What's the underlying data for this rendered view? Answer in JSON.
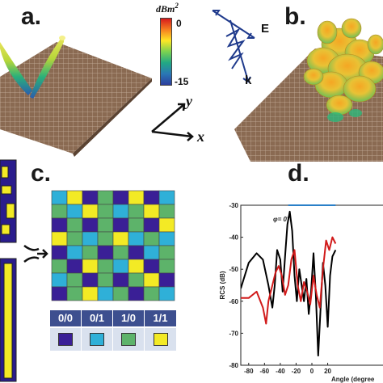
{
  "panels": {
    "a": "a.",
    "b": "b.",
    "c": "c.",
    "d": "d."
  },
  "colorbar": {
    "unit": "dBm",
    "unit_exponent": "2",
    "max_label": "0",
    "min_label": "-15",
    "colors": [
      "#d7191c",
      "#f57f20",
      "#fde725",
      "#7ad151",
      "#22a884",
      "#2a78b5",
      "#2c3e9e"
    ]
  },
  "wave": {
    "e_label": "E",
    "k_label": "k",
    "color": "#1f3a8c"
  },
  "axes3d": {
    "x_label": "x",
    "y_label": "y"
  },
  "coding": {
    "colors": {
      "0/0": "#3a1f96",
      "0/1": "#2fb0d8",
      "1/0": "#5db36a",
      "1/1": "#f3ea25"
    },
    "legend": [
      {
        "code": "0/0",
        "color": "#3a1f96"
      },
      {
        "code": "0/1",
        "color": "#2fb0d8"
      },
      {
        "code": "1/0",
        "color": "#5db36a"
      },
      {
        "code": "1/1",
        "color": "#f3ea25"
      }
    ]
  },
  "chart_data": {
    "type": "line",
    "title": "",
    "annotation": "φ= 0°",
    "xlabel": "Angle (degree",
    "ylabel": "RCS (dB)",
    "xlim": [
      -90,
      90
    ],
    "ylim": [
      -80,
      -30
    ],
    "xticks": [
      -80,
      -60,
      -40,
      -20,
      0,
      20
    ],
    "yticks": [
      -30,
      -40,
      -50,
      -60,
      -70,
      -80
    ],
    "series": [
      {
        "color": "#000000",
        "x": [
          -90,
          -80,
          -70,
          -62,
          -55,
          -50,
          -47,
          -44,
          -40,
          -37,
          -34,
          -31,
          -28,
          -25,
          -22,
          -19,
          -16,
          -13,
          -10,
          -7,
          -4,
          -1,
          2,
          5,
          8,
          11,
          14,
          17,
          20,
          23,
          26,
          30
        ],
        "y": [
          -56,
          -48,
          -45,
          -47,
          -55,
          -62,
          -55,
          -44,
          -47,
          -57,
          -46,
          -36,
          -32,
          -38,
          -52,
          -60,
          -50,
          -55,
          -60,
          -53,
          -64,
          -57,
          -45,
          -58,
          -77,
          -62,
          -48,
          -55,
          -68,
          -52,
          -46,
          -44
        ]
      },
      {
        "color": "#d11a1a",
        "x": [
          -90,
          -80,
          -70,
          -62,
          -58,
          -55,
          -50,
          -46,
          -42,
          -38,
          -34,
          -30,
          -26,
          -22,
          -18,
          -14,
          -10,
          -6,
          -2,
          2,
          6,
          10,
          14,
          18,
          22,
          26,
          30
        ],
        "y": [
          -59,
          -59,
          -57,
          -62,
          -67,
          -60,
          -55,
          -51,
          -49,
          -52,
          -58,
          -55,
          -47,
          -44,
          -55,
          -60,
          -54,
          -57,
          -61,
          -52,
          -58,
          -62,
          -50,
          -41,
          -44,
          -40,
          -42
        ]
      },
      {
        "color": "#2a80c8",
        "x": [
          -30,
          30
        ],
        "y": [
          -30,
          -30
        ]
      }
    ]
  }
}
